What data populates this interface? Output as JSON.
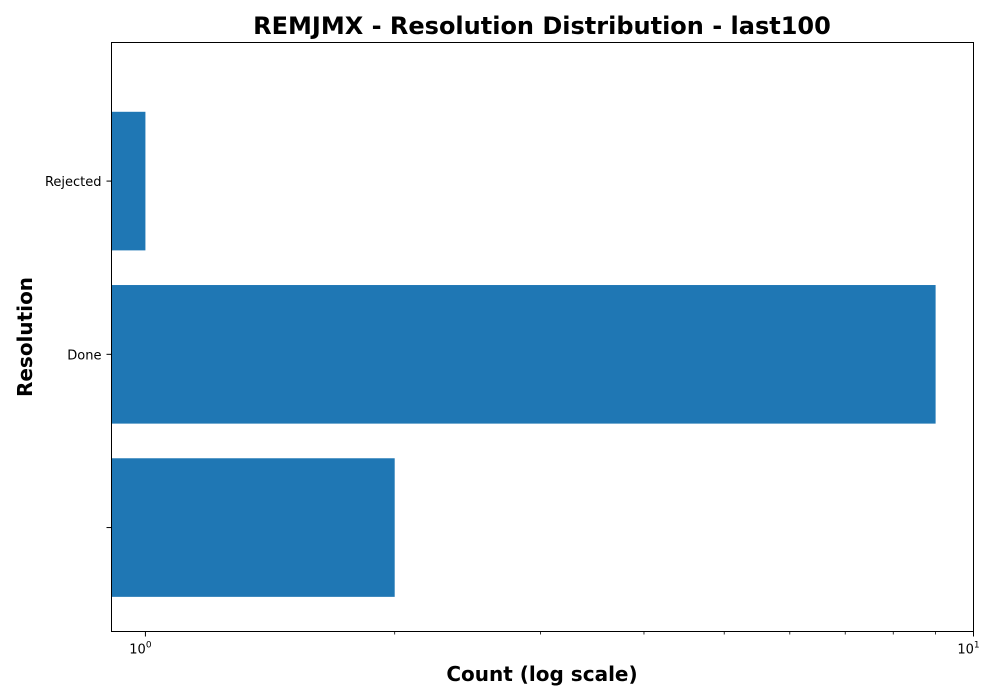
{
  "chart_data": {
    "type": "bar",
    "orientation": "horizontal",
    "title": "REMJMX - Resolution Distribution - last100",
    "xlabel": "Count (log scale)",
    "ylabel": "Resolution",
    "x_scale": "log",
    "xlim": [
      0.91,
      10
    ],
    "categories": [
      "",
      "Done",
      "Rejected"
    ],
    "values": [
      2,
      9,
      1
    ],
    "x_ticks": [
      {
        "value": 1,
        "base": "10",
        "exponent": "0"
      },
      {
        "value": 10,
        "base": "10",
        "exponent": "1"
      }
    ],
    "grid": false,
    "bar_color": "#1f77b4"
  }
}
